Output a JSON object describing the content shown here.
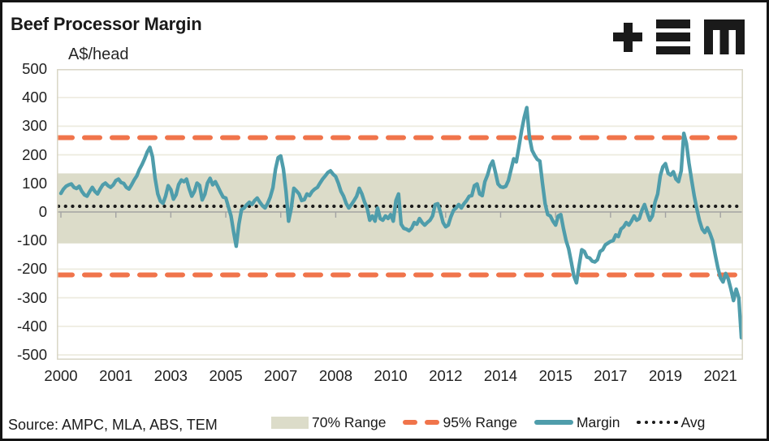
{
  "header": {
    "title": "Beef Processor Margin",
    "units_label": "A$/head",
    "logo_name": "TEM logo"
  },
  "footer": {
    "source": "Source: AMPC, MLA, ABS, TEM"
  },
  "legend": {
    "items": [
      {
        "swatch": "band",
        "label": "70% Range"
      },
      {
        "swatch": "dashes",
        "label": "95% Range"
      },
      {
        "swatch": "line",
        "label": "Margin"
      },
      {
        "swatch": "dots",
        "label": "Avg"
      }
    ]
  },
  "chart_data": {
    "type": "line",
    "title": "Beef Processor Margin",
    "ylabel": "A$/head",
    "xlabel": "",
    "ylim": [
      -500,
      500
    ],
    "grid": true,
    "legend_position": "bottom",
    "y_ticks": [
      500,
      400,
      300,
      200,
      100,
      0,
      -100,
      -200,
      -300,
      -400,
      -500
    ],
    "x_tick_labels": [
      "2000",
      "2001",
      "2003",
      "2005",
      "2007",
      "2008",
      "2010",
      "2012",
      "2014",
      "2015",
      "2017",
      "2019",
      "2021"
    ],
    "x_label_interval_months": 21,
    "avg_line": 20,
    "band_70_range": [
      -110,
      135
    ],
    "range_95_lines": [
      -220,
      260
    ],
    "series": [
      {
        "name": "Margin",
        "start": "2000-01",
        "frequency": "monthly",
        "values": [
          65,
          80,
          90,
          95,
          98,
          86,
          82,
          90,
          72,
          60,
          55,
          72,
          86,
          72,
          63,
          80,
          95,
          101,
          92,
          86,
          95,
          110,
          115,
          103,
          100,
          86,
          80,
          95,
          112,
          126,
          149,
          166,
          186,
          210,
          226,
          193,
          118,
          63,
          38,
          30,
          55,
          92,
          78,
          45,
          60,
          96,
          112,
          106,
          115,
          82,
          55,
          72,
          101,
          93,
          42,
          62,
          101,
          118,
          95,
          106,
          88,
          69,
          52,
          49,
          18,
          -14,
          -70,
          -120,
          -43,
          8,
          14,
          25,
          34,
          26,
          40,
          49,
          34,
          22,
          14,
          30,
          52,
          85,
          150,
          190,
          196,
          150,
          72,
          -32,
          12,
          83,
          74,
          63,
          40,
          43,
          63,
          57,
          72,
          80,
          86,
          101,
          115,
          126,
          138,
          144,
          132,
          124,
          101,
          72,
          55,
          30,
          14,
          26,
          40,
          55,
          83,
          63,
          35,
          14,
          -29,
          -14,
          -32,
          14,
          -23,
          -29,
          -14,
          -23,
          -9,
          -32,
          40,
          63,
          -43,
          -57,
          -60,
          -66,
          -57,
          -37,
          -43,
          -23,
          -37,
          -46,
          -37,
          -29,
          -14,
          26,
          29,
          0,
          -37,
          -52,
          -46,
          -17,
          6,
          14,
          26,
          14,
          29,
          40,
          55,
          57,
          92,
          98,
          63,
          57,
          106,
          129,
          161,
          178,
          140,
          98,
          88,
          86,
          90,
          110,
          149,
          186,
          175,
          227,
          284,
          330,
          365,
          264,
          216,
          198,
          184,
          178,
          101,
          29,
          -9,
          -14,
          -32,
          -46,
          -14,
          -9,
          -57,
          -100,
          -129,
          -175,
          -224,
          -248,
          -187,
          -132,
          -138,
          -158,
          -161,
          -172,
          -175,
          -167,
          -138,
          -132,
          -115,
          -109,
          -103,
          -100,
          -80,
          -86,
          -60,
          -52,
          -37,
          -46,
          -32,
          -14,
          -29,
          -23,
          6,
          26,
          -3,
          -29,
          -14,
          34,
          63,
          126,
          158,
          169,
          135,
          129,
          141,
          115,
          106,
          144,
          275,
          240,
          170,
          110,
          55,
          10,
          -30,
          -60,
          -72,
          -55,
          -75,
          -100,
          -150,
          -195,
          -230,
          -245,
          -215,
          -235,
          -270,
          -310,
          -270,
          -300,
          -440
        ]
      }
    ],
    "colors": {
      "margin": "#4f9dab",
      "range95": "#f0744b",
      "band70": "#dcdcc9",
      "avg": "#1b1b1b",
      "grid": "#edebdf",
      "axis": "#a3a3a3",
      "frame": "#d9d6c6"
    }
  }
}
